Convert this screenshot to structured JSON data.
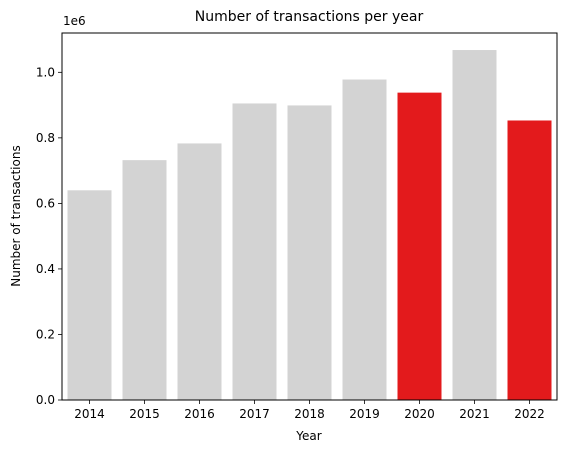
{
  "chart_data": {
    "type": "bar",
    "title": "Number of transactions per year",
    "xlabel": "Year",
    "ylabel": "Number of transactions",
    "y_scale_label": "1e6",
    "categories": [
      "2014",
      "2015",
      "2016",
      "2017",
      "2018",
      "2019",
      "2020",
      "2021",
      "2022"
    ],
    "values": [
      640000,
      732000,
      783000,
      905000,
      899000,
      978000,
      938000,
      1068000,
      853000
    ],
    "ylim": [
      0,
      1120000
    ],
    "yticks": [
      0.0,
      0.2,
      0.4,
      0.6,
      0.8,
      1.0
    ],
    "ytick_labels": [
      "0.0",
      "0.2",
      "0.4",
      "0.6",
      "0.8",
      "1.0"
    ],
    "colors": [
      "#d3d3d3",
      "#d3d3d3",
      "#d3d3d3",
      "#d3d3d3",
      "#d3d3d3",
      "#d3d3d3",
      "#e31a1c",
      "#d3d3d3",
      "#e31a1c"
    ],
    "grid": false,
    "legend": "none"
  }
}
